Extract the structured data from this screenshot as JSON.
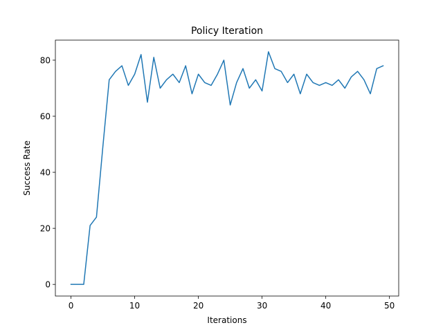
{
  "chart_data": {
    "type": "line",
    "title": "Policy Iteration",
    "xlabel": "Iterations",
    "ylabel": "Success Rate",
    "xlim": [
      -2.45,
      51.45
    ],
    "ylim": [
      -4.15,
      87.15
    ],
    "xticks": [
      0,
      10,
      20,
      30,
      40,
      50
    ],
    "yticks": [
      0,
      20,
      40,
      60,
      80
    ],
    "grid": false,
    "color": "#1f77b4",
    "series": [
      {
        "x": [
          0,
          1,
          2,
          3,
          4,
          5,
          6,
          7,
          8,
          9,
          10,
          11,
          12,
          13,
          14,
          15,
          16,
          17,
          18,
          19,
          20,
          21,
          22,
          23,
          24,
          25,
          26,
          27,
          28,
          29,
          30,
          31,
          32,
          33,
          34,
          35,
          36,
          37,
          38,
          39,
          40,
          41,
          42,
          43,
          44,
          45,
          46,
          47,
          48,
          49
        ],
        "values": [
          0,
          0,
          0,
          21,
          24,
          49,
          73,
          76,
          78,
          71,
          75,
          82,
          65,
          81,
          70,
          73,
          75,
          72,
          78,
          68,
          75,
          72,
          71,
          75,
          80,
          64,
          72,
          77,
          70,
          73,
          69,
          83,
          77,
          76,
          72,
          75,
          68,
          75,
          72,
          71,
          72,
          71,
          73,
          70,
          74,
          76,
          73,
          68,
          77,
          78
        ]
      }
    ]
  }
}
